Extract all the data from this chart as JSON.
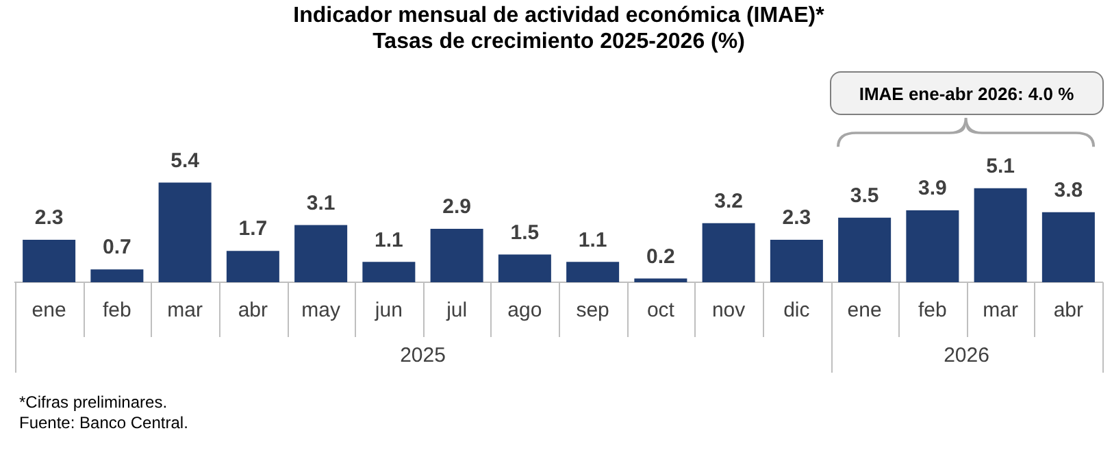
{
  "chart_data": {
    "type": "bar",
    "title": "Indicador mensual de actividad económica (IMAE)*",
    "subtitle": "Tasas de crecimiento 2025-2026 (%)",
    "categories": [
      "ene",
      "feb",
      "mar",
      "abr",
      "may",
      "jun",
      "jul",
      "ago",
      "sep",
      "oct",
      "nov",
      "dic",
      "ene",
      "feb",
      "mar",
      "abr"
    ],
    "values": [
      2.3,
      0.7,
      5.4,
      1.7,
      3.1,
      1.1,
      2.9,
      1.5,
      1.1,
      0.2,
      3.2,
      2.3,
      3.5,
      3.9,
      5.1,
      3.8
    ],
    "color": "#1f3d72",
    "data_labels": true,
    "grid": false,
    "legend": false,
    "annotations": [
      "2025",
      "2026",
      "IMAE ene-abr 2026: 4.0 %",
      "*Cifras preliminares.",
      "Fuente: Banco Central."
    ]
  }
}
